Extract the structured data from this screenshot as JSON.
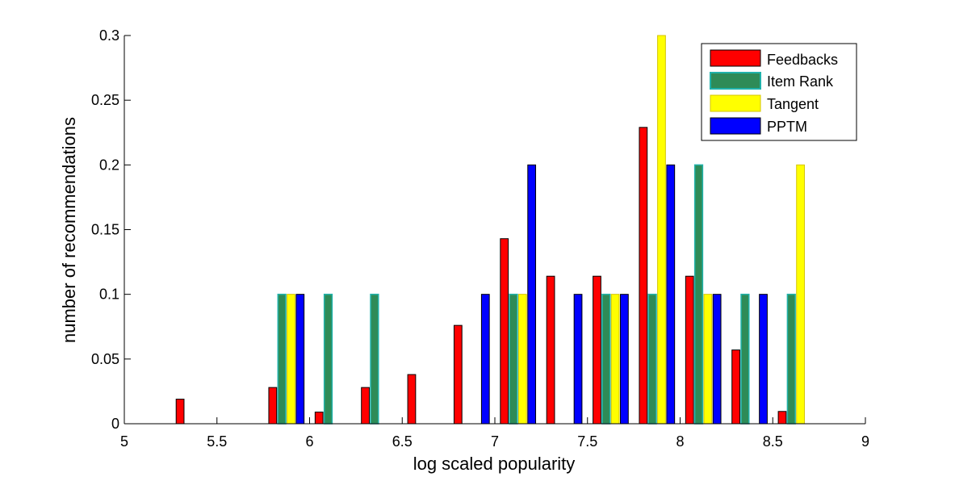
{
  "chart_data": {
    "type": "bar",
    "xlabel": "log scaled popularity",
    "ylabel": "number of recommendations",
    "xlim": [
      5,
      9
    ],
    "ylim": [
      0,
      0.3
    ],
    "xticks": [
      "5",
      "5.5",
      "6",
      "6.5",
      "7",
      "7.5",
      "8",
      "8.5",
      "9"
    ],
    "yticks": [
      "0",
      "0.05",
      "0.1",
      "0.15",
      "0.2",
      "0.25",
      "0.3"
    ],
    "legend_position": "top-right",
    "grid": false,
    "categories": [
      5.125,
      5.375,
      5.625,
      5.875,
      6.125,
      6.375,
      6.625,
      6.875,
      7.125,
      7.375,
      7.625,
      7.875,
      8.125,
      8.375,
      8.625,
      8.875
    ],
    "series": [
      {
        "name": "Feedbacks",
        "color": "#ff0000",
        "values": [
          0,
          0.019,
          0,
          0.028,
          0.009,
          0.028,
          0.038,
          0.076,
          0.143,
          0.114,
          0.114,
          0.229,
          0.114,
          0.057,
          0.0095,
          0
        ]
      },
      {
        "name": "Item Rank",
        "color": "#2e8b57",
        "values": [
          0,
          0,
          0,
          0.1,
          0.1,
          0.1,
          0,
          0,
          0.1,
          0,
          0.1,
          0.1,
          0.2,
          0.1,
          0.1,
          0
        ]
      },
      {
        "name": "Tangent",
        "color": "#ffff00",
        "values": [
          0,
          0,
          0,
          0.1,
          0,
          0,
          0,
          0,
          0.1,
          0,
          0.1,
          0.3,
          0.1,
          0,
          0.2,
          0
        ]
      },
      {
        "name": "PPTM",
        "color": "#0000ff",
        "values": [
          0,
          0,
          0,
          0.1,
          0,
          0,
          0,
          0.1,
          0.2,
          0.1,
          0.1,
          0.2,
          0.1,
          0.1,
          0,
          0
        ]
      }
    ]
  }
}
